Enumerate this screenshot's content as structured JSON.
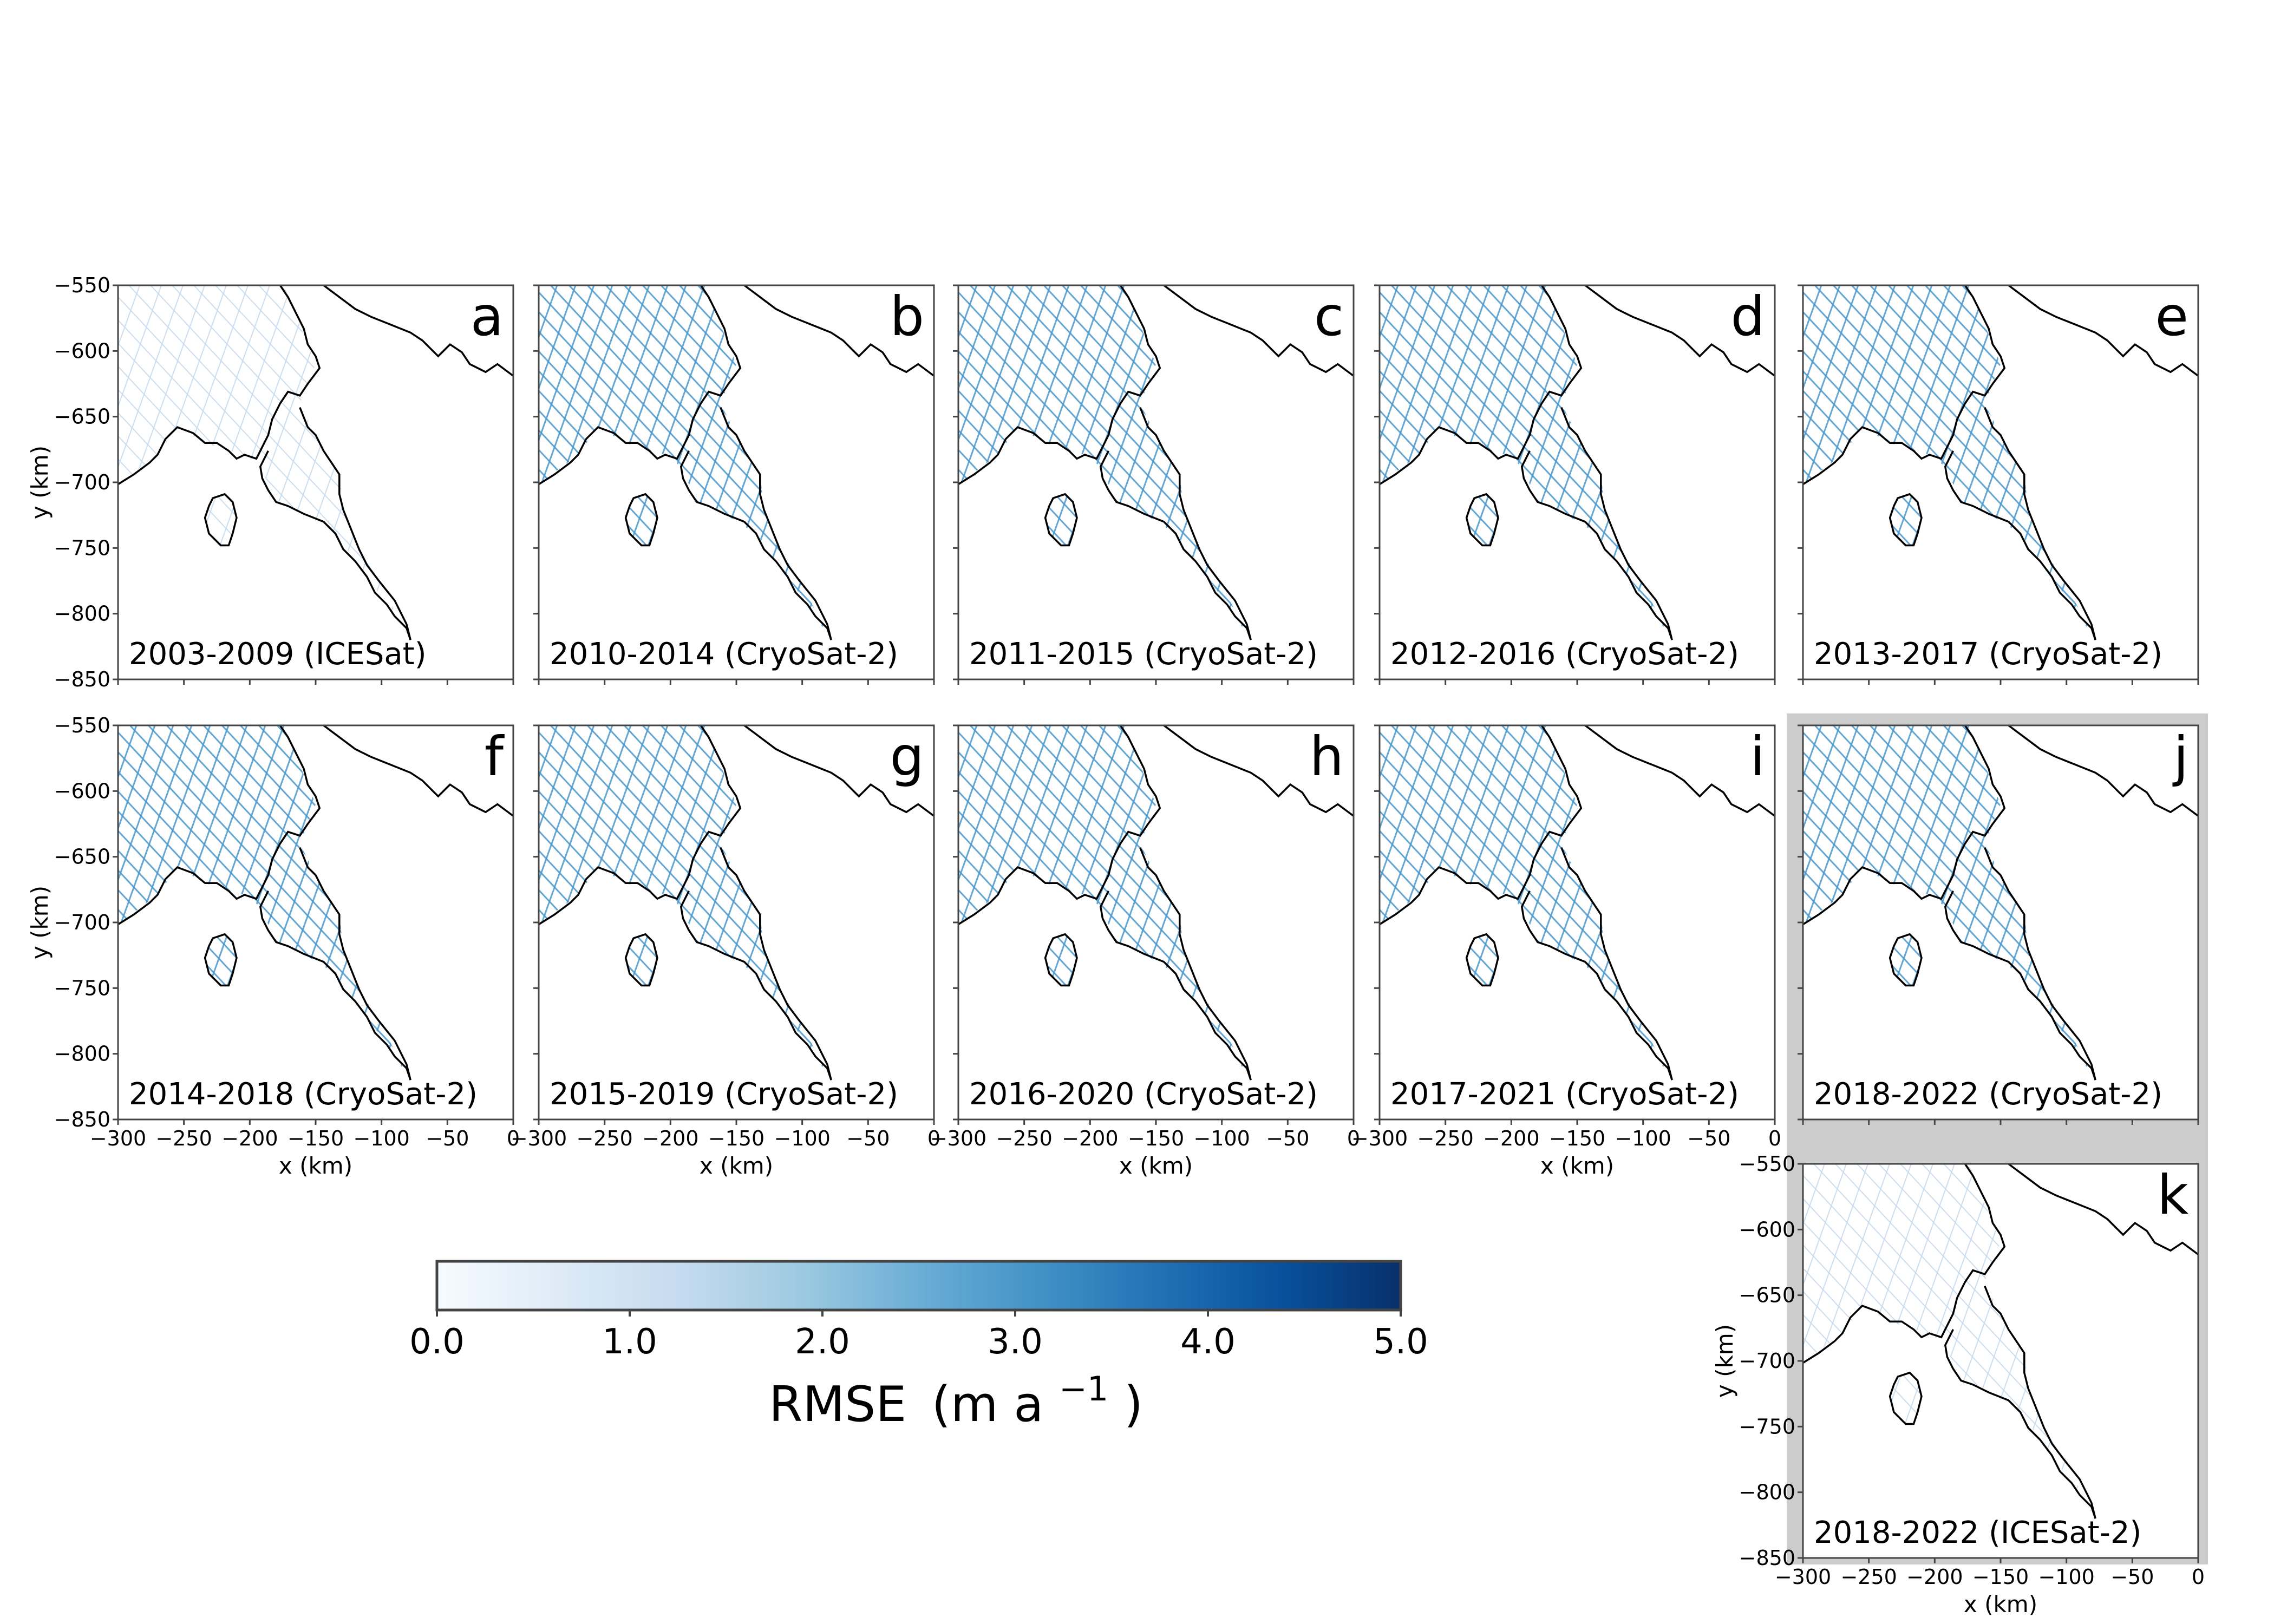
{
  "x_axis_label": "x (km)",
  "y_axis_label": "y (km)",
  "x_ticks": [
    "−300",
    "−250",
    "−200",
    "−150",
    "−100",
    "−50",
    "0"
  ],
  "y_ticks": [
    "−550",
    "−600",
    "−650",
    "−700",
    "−750",
    "−800",
    "−850"
  ],
  "panels": [
    {
      "letter": "a",
      "caption": "2003-2009 (ICESat)",
      "track_style": "faint"
    },
    {
      "letter": "b",
      "caption": "2010-2014 (CryoSat-2)",
      "track_style": "grid"
    },
    {
      "letter": "c",
      "caption": "2011-2015 (CryoSat-2)",
      "track_style": "grid"
    },
    {
      "letter": "d",
      "caption": "2012-2016 (CryoSat-2)",
      "track_style": "grid"
    },
    {
      "letter": "e",
      "caption": "2013-2017 (CryoSat-2)",
      "track_style": "grid"
    },
    {
      "letter": "f",
      "caption": "2014-2018 (CryoSat-2)",
      "track_style": "grid"
    },
    {
      "letter": "g",
      "caption": "2015-2019 (CryoSat-2)",
      "track_style": "grid"
    },
    {
      "letter": "h",
      "caption": "2016-2020 (CryoSat-2)",
      "track_style": "grid"
    },
    {
      "letter": "i",
      "caption": "2017-2021 (CryoSat-2)",
      "track_style": "grid"
    },
    {
      "letter": "j",
      "caption": "2018-2022 (CryoSat-2)",
      "track_style": "grid"
    },
    {
      "letter": "k",
      "caption": "2018-2022 (ICESat-2)",
      "track_style": "faint"
    }
  ],
  "highlighted_panels": [
    "j",
    "k"
  ],
  "colorbar": {
    "label_main": "RMSE",
    "label_unit": "(m a",
    "label_exp": "−1",
    "label_close": ")",
    "ticks": [
      "0.0",
      "1.0",
      "2.0",
      "3.0",
      "4.0",
      "5.0"
    ],
    "vmin": 0,
    "vmax": 5,
    "colormap": "Blues",
    "colors": [
      "#f7fbff",
      "#deebf7",
      "#c6dbef",
      "#9ecae1",
      "#6baed6",
      "#4292c6",
      "#2171b5",
      "#08519c",
      "#08306b"
    ]
  },
  "colors": {
    "track_grid": "#4a98cd",
    "track_faint": "#c6dbef",
    "coastline": "#000000",
    "highlight_frame": "#cccccc"
  }
}
